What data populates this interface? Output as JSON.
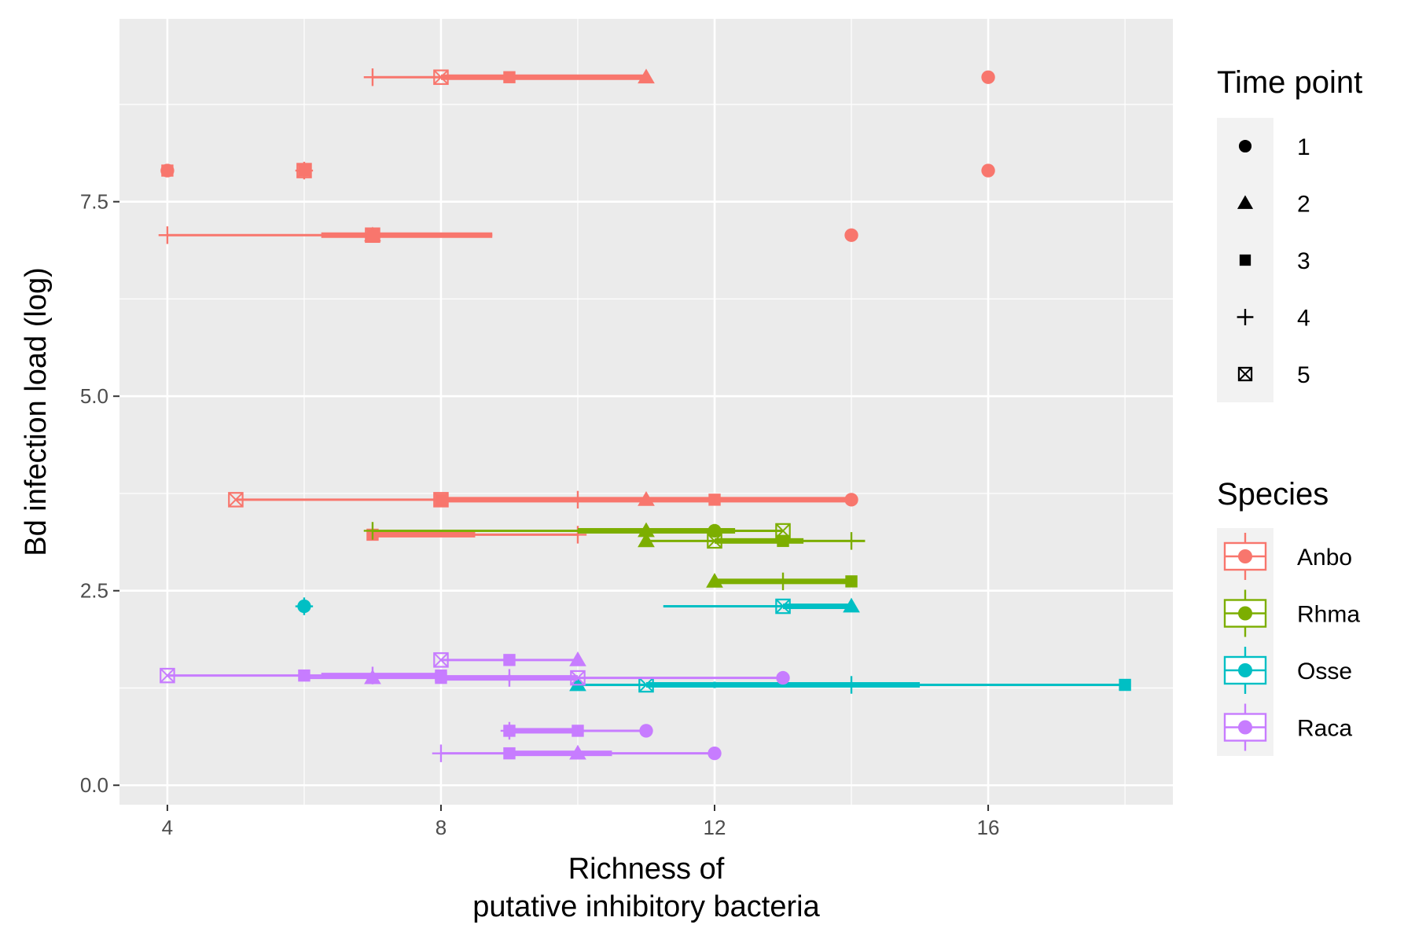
{
  "chart_data": {
    "type": "scatter",
    "title": "",
    "xlabel_lines": [
      "Richness of",
      "putative inhibitory bacteria"
    ],
    "ylabel": "Bd infection load (log)",
    "xlim": [
      3.3,
      18.7
    ],
    "ylim": [
      -0.25,
      9.85
    ],
    "x_ticks": [
      4,
      8,
      12,
      16
    ],
    "x_tick_labels": [
      "4",
      "8",
      "12",
      "16"
    ],
    "y_ticks": [
      0,
      2.5,
      5,
      7.5
    ],
    "y_tick_labels": [
      "0.0",
      "2.5",
      "5.0",
      "7.5"
    ],
    "grid": true,
    "legend_position": "right",
    "colors": {
      "Anbo": "#F8766D",
      "Rhma": "#7CAE00",
      "Osse": "#00BFC4",
      "Raca": "#C77CFF",
      "panel": "#EBEBEB",
      "grid": "#FFFFFF"
    },
    "legend_shape": {
      "title": "Time point",
      "items": [
        {
          "label": "1",
          "shape": "circle"
        },
        {
          "label": "2",
          "shape": "triangle"
        },
        {
          "label": "3",
          "shape": "square"
        },
        {
          "label": "4",
          "shape": "plus"
        },
        {
          "label": "5",
          "shape": "boxcross"
        }
      ]
    },
    "legend_color": {
      "title": "Species",
      "items": [
        "Anbo",
        "Rhma",
        "Osse",
        "Raca"
      ]
    },
    "groups": [
      {
        "species": "Anbo",
        "y": 9.1,
        "xmin": 7,
        "q1": 8,
        "median": 9,
        "q3": 11,
        "xmax": 11,
        "points": [
          {
            "x": 7,
            "shape": "plus"
          },
          {
            "x": 8,
            "shape": "boxcross"
          },
          {
            "x": 9,
            "shape": "square"
          },
          {
            "x": 11,
            "shape": "triangle"
          }
        ]
      },
      {
        "species": "Anbo",
        "y": 9.1,
        "xmin": 16,
        "q1": 16,
        "median": 16,
        "q3": 16,
        "xmax": 16,
        "points": [
          {
            "x": 16,
            "shape": "circle"
          }
        ]
      },
      {
        "species": "Anbo",
        "y": 7.9,
        "xmin": 4,
        "q1": 4,
        "median": 4,
        "q3": 4,
        "xmax": 4,
        "points": [
          {
            "x": 4,
            "shape": "circle"
          },
          {
            "x": 4,
            "shape": "square"
          }
        ]
      },
      {
        "species": "Anbo",
        "y": 7.9,
        "xmin": 6,
        "q1": 6,
        "median": 6,
        "q3": 6,
        "xmax": 6,
        "points": [
          {
            "x": 6,
            "shape": "plus"
          },
          {
            "x": 6,
            "shape": "boxcross"
          },
          {
            "x": 6,
            "shape": "square"
          }
        ]
      },
      {
        "species": "Anbo",
        "y": 7.9,
        "xmin": 16,
        "q1": 16,
        "median": 16,
        "q3": 16,
        "xmax": 16,
        "points": [
          {
            "x": 16,
            "shape": "circle"
          }
        ]
      },
      {
        "species": "Anbo",
        "y": 7.07,
        "xmin": 4,
        "q1": 6.25,
        "median": 7,
        "q3": 8.75,
        "xmax": 8.75,
        "points": [
          {
            "x": 4,
            "shape": "plus"
          },
          {
            "x": 7,
            "shape": "triangle"
          },
          {
            "x": 7,
            "shape": "square"
          },
          {
            "x": 7,
            "shape": "boxcross"
          }
        ]
      },
      {
        "species": "Anbo",
        "y": 7.07,
        "xmin": 14,
        "q1": 14,
        "median": 14,
        "q3": 14,
        "xmax": 14,
        "points": [
          {
            "x": 14,
            "shape": "circle"
          }
        ]
      },
      {
        "species": "Anbo",
        "y": 3.67,
        "xmin": 5,
        "q1": 8,
        "median": 11,
        "q3": 14,
        "xmax": 14,
        "points": [
          {
            "x": 5,
            "shape": "boxcross"
          },
          {
            "x": 8,
            "shape": "square"
          },
          {
            "x": 8,
            "shape": "boxcross"
          },
          {
            "x": 10,
            "shape": "plus"
          },
          {
            "x": 11,
            "shape": "triangle"
          },
          {
            "x": 12,
            "shape": "square"
          },
          {
            "x": 14,
            "shape": "circle"
          }
        ]
      },
      {
        "species": "Anbo",
        "y": 3.22,
        "xmin": 7,
        "q1": 7,
        "median": 7,
        "q3": 8.5,
        "xmax": 10,
        "points": [
          {
            "x": 7,
            "shape": "square"
          },
          {
            "x": 10,
            "shape": "plus"
          }
        ]
      },
      {
        "species": "Rhma",
        "y": 3.27,
        "xmin": 7,
        "q1": 10,
        "median": 11,
        "q3": 12.3,
        "xmax": 13,
        "points": [
          {
            "x": 7,
            "shape": "plus"
          },
          {
            "x": 11,
            "shape": "triangle"
          },
          {
            "x": 12,
            "shape": "circle"
          },
          {
            "x": 13,
            "shape": "boxcross"
          }
        ]
      },
      {
        "species": "Rhma",
        "y": 3.14,
        "xmin": 11,
        "q1": 12,
        "median": 13,
        "q3": 13.3,
        "xmax": 14.2,
        "points": [
          {
            "x": 11,
            "shape": "triangle"
          },
          {
            "x": 12,
            "shape": "boxcross"
          },
          {
            "x": 13,
            "shape": "square"
          },
          {
            "x": 14,
            "shape": "plus"
          }
        ]
      },
      {
        "species": "Rhma",
        "y": 2.62,
        "xmin": 12,
        "q1": 12,
        "median": 12,
        "q3": 14,
        "xmax": 14,
        "points": [
          {
            "x": 12,
            "shape": "triangle"
          },
          {
            "x": 13,
            "shape": "plus"
          },
          {
            "x": 14,
            "shape": "square"
          }
        ]
      },
      {
        "species": "Osse",
        "y": 2.3,
        "xmin": 6,
        "q1": 6,
        "median": 6,
        "q3": 6,
        "xmax": 6,
        "points": [
          {
            "x": 6,
            "shape": "circle"
          },
          {
            "x": 6,
            "shape": "plus"
          }
        ]
      },
      {
        "species": "Osse",
        "y": 2.3,
        "xmin": 11.25,
        "q1": 13,
        "median": 14,
        "q3": 14,
        "xmax": 14,
        "points": [
          {
            "x": 13,
            "shape": "boxcross"
          },
          {
            "x": 14,
            "shape": "triangle"
          }
        ]
      },
      {
        "species": "Osse",
        "y": 1.29,
        "xmin": 10,
        "q1": 11,
        "median": 12,
        "q3": 15,
        "xmax": 18,
        "points": [
          {
            "x": 10,
            "shape": "triangle"
          },
          {
            "x": 11,
            "shape": "boxcross"
          },
          {
            "x": 14,
            "shape": "plus"
          },
          {
            "x": 18,
            "shape": "square"
          }
        ]
      },
      {
        "species": "Raca",
        "y": 1.61,
        "xmin": 8,
        "q1": 9,
        "median": 9,
        "q3": 9,
        "xmax": 10,
        "points": [
          {
            "x": 8,
            "shape": "boxcross"
          },
          {
            "x": 9,
            "shape": "square"
          },
          {
            "x": 10,
            "shape": "triangle"
          }
        ]
      },
      {
        "species": "Raca",
        "y": 1.41,
        "xmin": 4,
        "q1": 6.25,
        "median": 7,
        "q3": 8,
        "xmax": 8,
        "points": [
          {
            "x": 4,
            "shape": "boxcross"
          },
          {
            "x": 6,
            "shape": "square"
          },
          {
            "x": 7,
            "shape": "plus"
          },
          {
            "x": 8,
            "shape": "square"
          }
        ]
      },
      {
        "species": "Raca",
        "y": 1.38,
        "xmin": 6,
        "q1": 8,
        "median": 9,
        "q3": 10,
        "xmax": 13,
        "points": [
          {
            "x": 7,
            "shape": "triangle"
          },
          {
            "x": 8,
            "shape": "square"
          },
          {
            "x": 9,
            "shape": "plus"
          },
          {
            "x": 10,
            "shape": "boxcross"
          },
          {
            "x": 13,
            "shape": "circle"
          }
        ]
      },
      {
        "species": "Raca",
        "y": 0.7,
        "xmin": 9,
        "q1": 9,
        "median": 10,
        "q3": 10,
        "xmax": 11,
        "points": [
          {
            "x": 9,
            "shape": "plus"
          },
          {
            "x": 9,
            "shape": "square"
          },
          {
            "x": 10,
            "shape": "square"
          },
          {
            "x": 11,
            "shape": "circle"
          }
        ]
      },
      {
        "species": "Raca",
        "y": 0.41,
        "xmin": 8,
        "q1": 9,
        "median": 10,
        "q3": 10.5,
        "xmax": 12,
        "points": [
          {
            "x": 8,
            "shape": "plus"
          },
          {
            "x": 9,
            "shape": "square"
          },
          {
            "x": 10,
            "shape": "triangle"
          },
          {
            "x": 12,
            "shape": "circle"
          }
        ]
      }
    ]
  }
}
